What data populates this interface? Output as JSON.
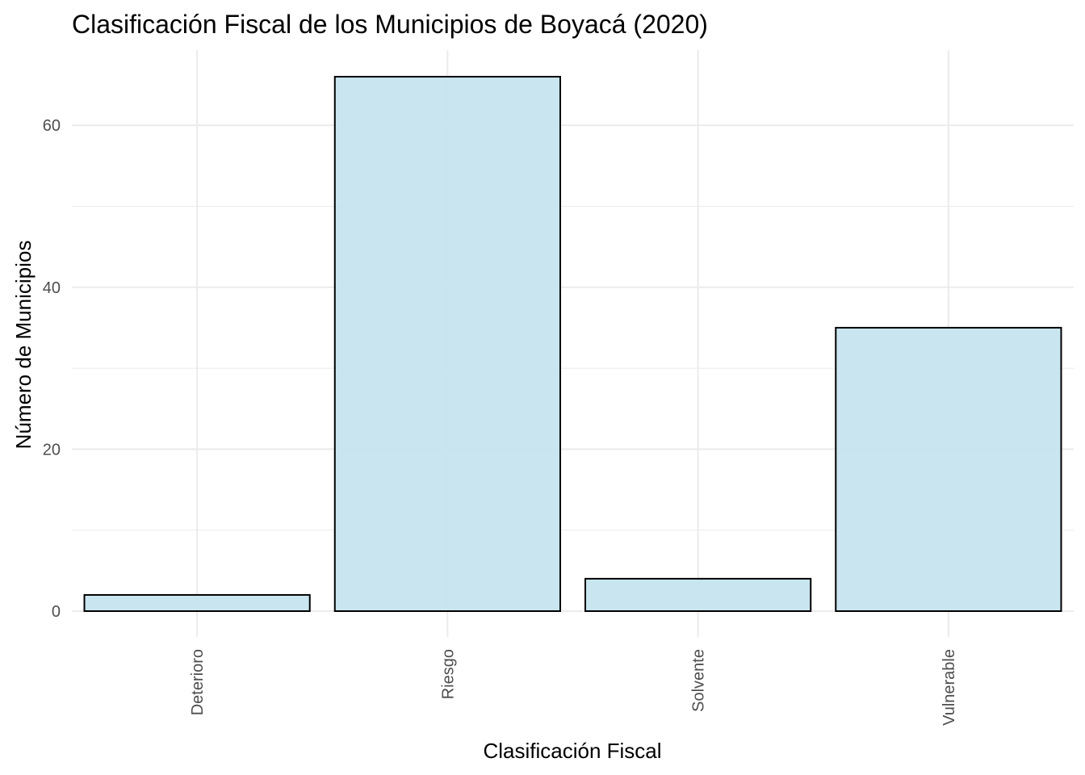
{
  "chart_data": {
    "type": "bar",
    "title": "Clasificación Fiscal de los Municipios de Boyacá (2020)",
    "xlabel": "Clasificación Fiscal",
    "ylabel": "Número de Municipios",
    "categories": [
      "Deterioro",
      "Riesgo",
      "Solvente",
      "Vulnerable"
    ],
    "values": [
      2,
      66,
      4,
      35
    ],
    "ylim": [
      0,
      69
    ],
    "yticks": [
      0,
      20,
      40,
      60
    ],
    "grid": true,
    "legend": "none",
    "colors": {
      "bar_fill": "#c6e4ee",
      "bar_stroke": "#000000",
      "grid": "#ebebeb",
      "tick_text": "#4d4d4d"
    }
  }
}
